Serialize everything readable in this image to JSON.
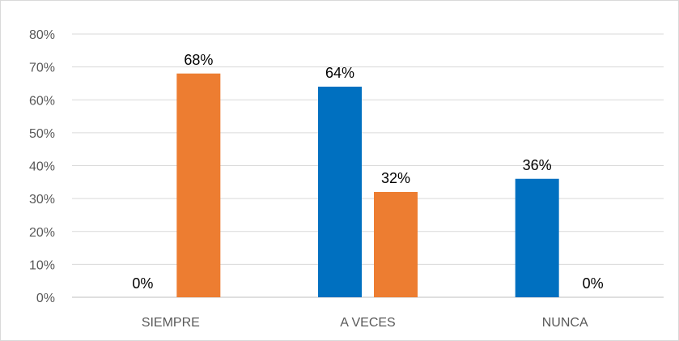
{
  "chart_data": {
    "type": "bar",
    "categories": [
      "SIEMPRE",
      "A VECES",
      "NUNCA"
    ],
    "series": [
      {
        "values": [
          0,
          64,
          36
        ],
        "color": "#0070c0"
      },
      {
        "values": [
          68,
          32,
          0
        ],
        "color": "#ed7d31"
      }
    ],
    "data_labels": [
      [
        "0%",
        "64%",
        "36%"
      ],
      [
        "68%",
        "32%",
        "0%"
      ]
    ],
    "y_ticks": [
      "0%",
      "10%",
      "20%",
      "30%",
      "40%",
      "50%",
      "60%",
      "70%",
      "80%"
    ],
    "ylim": [
      0,
      80
    ],
    "y_unit": "%",
    "grid": true,
    "legend": "none",
    "title": "",
    "xlabel": "",
    "ylabel": ""
  }
}
